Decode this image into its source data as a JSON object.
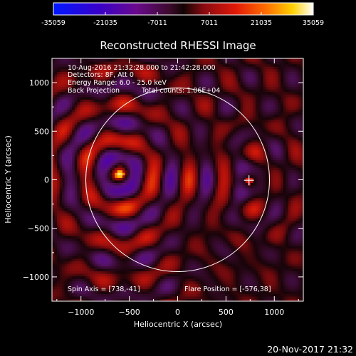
{
  "colorbar": {
    "tick_labels": [
      "-35059",
      "-21035",
      "-7011",
      "7011",
      "21035",
      "35059"
    ],
    "range": [
      -35059,
      35059
    ]
  },
  "chart_data": {
    "type": "heatmap",
    "title": "Reconstructed RHESSI Image",
    "xlabel": "Heliocentric X (arcsec)",
    "ylabel": "Heliocentric Y (arcsec)",
    "xlim": [
      -1300,
      1300
    ],
    "ylim": [
      -1250,
      1250
    ],
    "x_ticks": [
      -1000,
      -500,
      0,
      500,
      1000
    ],
    "y_ticks": [
      -1000,
      -500,
      0,
      500,
      1000
    ],
    "x_tick_labels": [
      "−1000",
      "−500",
      "0",
      "500",
      "1000"
    ],
    "y_tick_labels": [
      "1000",
      "500",
      "0",
      "−500",
      "−1000"
    ],
    "source_position": [
      -600,
      60
    ],
    "flare_marker": [
      738,
      -5
    ],
    "solar_limb_radius": 950,
    "annotations": {
      "time_range": "10-Aug-2016 21:32:28.000 to 21:42:28.000",
      "detectors": "Detectors: 8F, Att 0",
      "energy_range": "Energy Range: 6.0 - 25.0 keV",
      "method": "Back Projection",
      "total_counts": "Total counts: 1.06E+04",
      "spin_axis": "Spin Axis = [738,-41]",
      "flare_position": "Flare Position = [-576,38]"
    }
  },
  "footer": {
    "timestamp": "20-Nov-2017 21:32"
  }
}
